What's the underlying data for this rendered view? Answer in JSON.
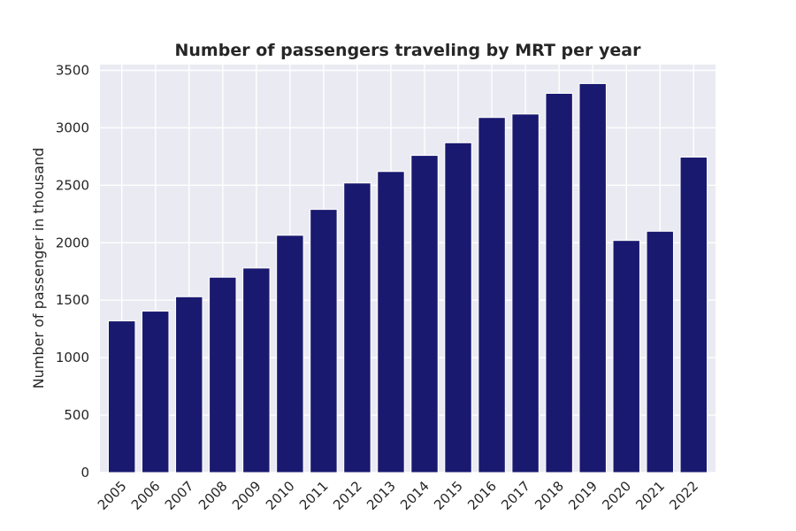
{
  "chart_data": {
    "type": "bar",
    "title": "Number of passengers traveling by MRT per year",
    "xlabel": "",
    "ylabel": "Number of passenger in thousand",
    "categories": [
      "2005",
      "2006",
      "2007",
      "2008",
      "2009",
      "2010",
      "2011",
      "2012",
      "2013",
      "2014",
      "2015",
      "2016",
      "2017",
      "2018",
      "2019",
      "2020",
      "2021",
      "2022"
    ],
    "values": [
      1320,
      1405,
      1530,
      1700,
      1780,
      2065,
      2290,
      2520,
      2620,
      2760,
      2870,
      3090,
      3120,
      3300,
      3385,
      2020,
      2100,
      2745
    ],
    "ylim": [
      0,
      3550
    ],
    "yticks": [
      "0",
      "500",
      "1000",
      "1500",
      "2000",
      "2500",
      "3000",
      "3500"
    ],
    "grid": true,
    "colors": {
      "bar": "#191970",
      "plot_background": "#eaeaf2",
      "grid": "#ffffff"
    }
  }
}
